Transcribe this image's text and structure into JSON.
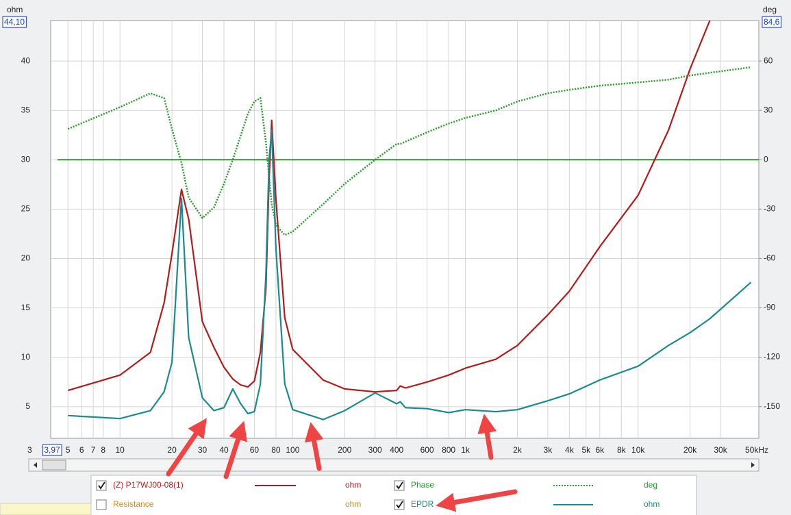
{
  "chart_data": {
    "type": "line",
    "y_axis_title": "ohm",
    "y2_axis_title": "deg",
    "x": [
      5,
      10,
      15,
      18,
      20,
      22.7,
      25,
      30,
      35,
      40,
      45,
      50,
      55,
      60,
      65,
      70,
      73,
      75.6,
      80,
      90,
      100,
      150,
      200,
      300,
      400,
      420,
      450,
      600,
      800,
      1000,
      1500,
      2000,
      3000,
      4000,
      6000,
      10000,
      15000,
      20000,
      26000,
      45000
    ],
    "series": [
      {
        "name": "(Z) P17WJ00-08(1)",
        "unit": "ohm",
        "color": "#b01c1c",
        "visible": true,
        "line_style": "solid",
        "values": [
          6.65,
          8.2,
          10.5,
          15.5,
          20.5,
          27.0,
          24,
          13.6,
          11,
          9,
          7.8,
          7.2,
          7.0,
          7.6,
          10.5,
          17,
          28,
          34,
          26,
          14,
          10.8,
          7.7,
          6.8,
          6.5,
          6.65,
          7.1,
          6.9,
          7.5,
          8.2,
          8.9,
          9.8,
          11.2,
          14.3,
          16.7,
          21.2,
          26.4,
          33,
          39.2,
          44.1,
          null
        ]
      },
      {
        "name": "Phase",
        "unit": "deg",
        "color": "#2a9a2a",
        "visible": true,
        "line_style": "dotted",
        "axis": "y2",
        "values": [
          18.7,
          32,
          40.4,
          37.5,
          18.7,
          -2,
          -23,
          -35.4,
          -29,
          -14.6,
          0,
          14.6,
          28,
          35.4,
          37.5,
          10.4,
          -10,
          -27,
          -39.5,
          -45.8,
          -43.7,
          -27,
          -14.6,
          0,
          9.6,
          9.6,
          11,
          16.7,
          22,
          25.4,
          30,
          35.4,
          40.4,
          42.5,
          45,
          47,
          48.7,
          51.2,
          52.9,
          56.2
        ]
      },
      {
        "name": "EPDR",
        "unit": "ohm",
        "color": "#1a8a8e",
        "visible": true,
        "line_style": "solid",
        "values": [
          4.1,
          3.8,
          4.6,
          6.5,
          9.5,
          26.1,
          12,
          5.9,
          4.6,
          4.9,
          6.8,
          5.3,
          4.3,
          4.5,
          7.3,
          18.4,
          30,
          33,
          21,
          7.3,
          4.7,
          3.7,
          4.6,
          6.4,
          5.3,
          5.5,
          4.9,
          4.8,
          4.4,
          4.7,
          4.5,
          4.7,
          5.6,
          6.3,
          7.7,
          9.1,
          11.2,
          12.5,
          13.9,
          17.6
        ]
      }
    ],
    "hidden_series": [
      {
        "name": "Resistance",
        "unit": "ohm",
        "color": "#c09020",
        "visible": false
      }
    ],
    "log_x": true,
    "xlim": [
      3.97,
      50000
    ],
    "xticks": [
      3,
      {
        "value": 3.97,
        "label": "3,97"
      },
      5,
      6,
      7,
      8,
      10,
      20,
      30,
      40,
      60,
      80,
      100,
      200,
      300,
      400,
      600,
      800,
      {
        "value": 1000,
        "label": "1k"
      },
      {
        "value": 2000,
        "label": "2k"
      },
      {
        "value": 3000,
        "label": "3k"
      },
      {
        "value": 4000,
        "label": "4k"
      },
      {
        "value": 5000,
        "label": "5k"
      },
      {
        "value": 6000,
        "label": "6k"
      },
      {
        "value": 8000,
        "label": "8k"
      },
      {
        "value": 10000,
        "label": "10k"
      },
      {
        "value": 20000,
        "label": "20k"
      },
      {
        "value": 30000,
        "label": "30k"
      },
      {
        "value": 50000,
        "label": "50kHz"
      }
    ],
    "ylim": [
      1.8,
      44.1
    ],
    "yticks": [
      {
        "value": 44.1,
        "label": "44,10"
      },
      40,
      35,
      30,
      25,
      20,
      15,
      10,
      5
    ],
    "y2lim": [
      -169.3,
      84.6
    ],
    "y2ticks": [
      {
        "value": 84.6,
        "label": "84,6"
      },
      60,
      30,
      0,
      -30,
      -60,
      -90,
      -120,
      -150
    ],
    "grid": true
  }
}
